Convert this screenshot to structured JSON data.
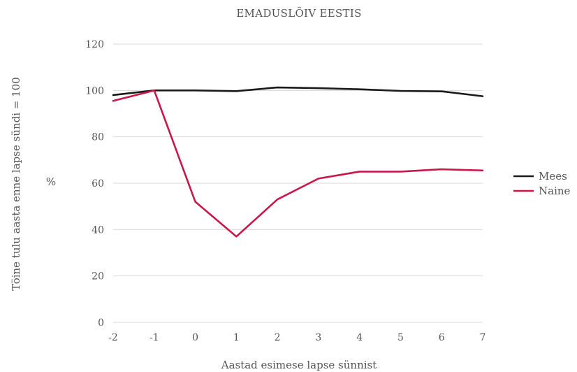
{
  "chart_data": {
    "type": "line",
    "title": "EMADUSLÕIV EESTIS",
    "xlabel": "Aastad esimese lapse sünnist",
    "ylabel": "Töine tulu aasta enne lapse sündi = 100",
    "ylabel_unit": "%",
    "x": [
      "-2",
      "-1",
      "0",
      "1",
      "2",
      "3",
      "4",
      "5",
      "6",
      "7"
    ],
    "ylim": [
      0,
      120
    ],
    "yticks": [
      "0",
      "20",
      "40",
      "60",
      "80",
      "100",
      "120"
    ],
    "grid": true,
    "legend_position": "right",
    "series": [
      {
        "name": "Mees",
        "color": "#1a1a1a",
        "values": [
          98,
          100,
          100,
          99.7,
          101.3,
          101,
          100.5,
          99.8,
          99.6,
          97.5
        ]
      },
      {
        "name": "Naine",
        "color": "#c8184a",
        "values": [
          95.5,
          100,
          52,
          37,
          53,
          62,
          65,
          65,
          66,
          65.5
        ]
      }
    ]
  }
}
